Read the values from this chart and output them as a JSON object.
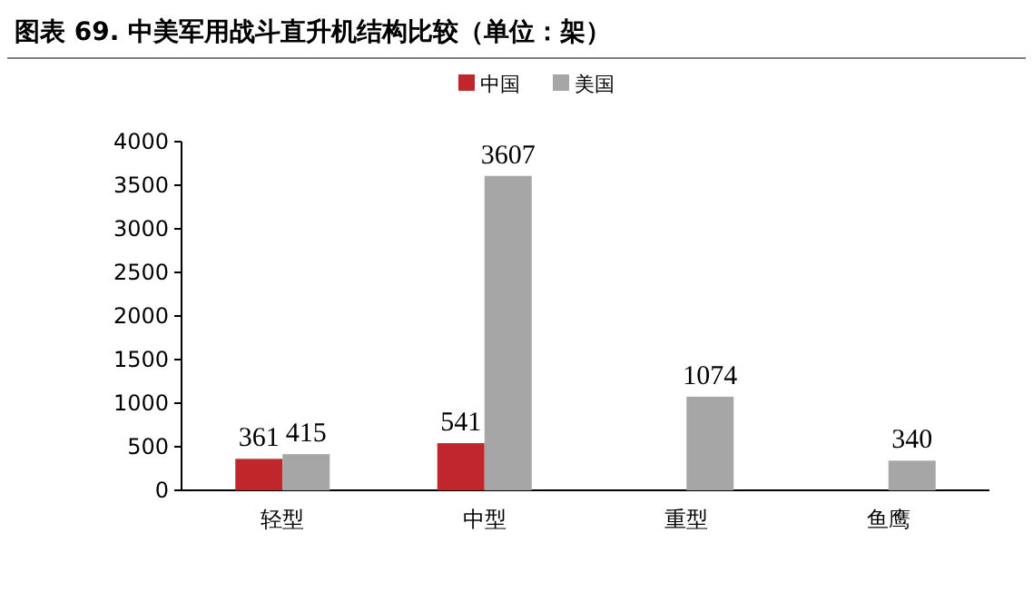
{
  "chart_data": {
    "type": "bar",
    "title": "图表 69. 中美军用战斗直升机结构比较（单位：架）",
    "categories": [
      "轻型",
      "中型",
      "重型",
      "鱼鹰"
    ],
    "series": [
      {
        "name": "中国",
        "color": "#c0272d",
        "values": [
          361,
          541,
          null,
          null
        ]
      },
      {
        "name": "美国",
        "color": "#a6a6a6",
        "values": [
          415,
          3607,
          1074,
          340
        ]
      }
    ],
    "ylim": [
      0,
      4000
    ],
    "yticks": [
      0,
      500,
      1000,
      1500,
      2000,
      2500,
      3000,
      3500,
      4000
    ],
    "data_labels": true,
    "legend": "top",
    "grid": false
  }
}
